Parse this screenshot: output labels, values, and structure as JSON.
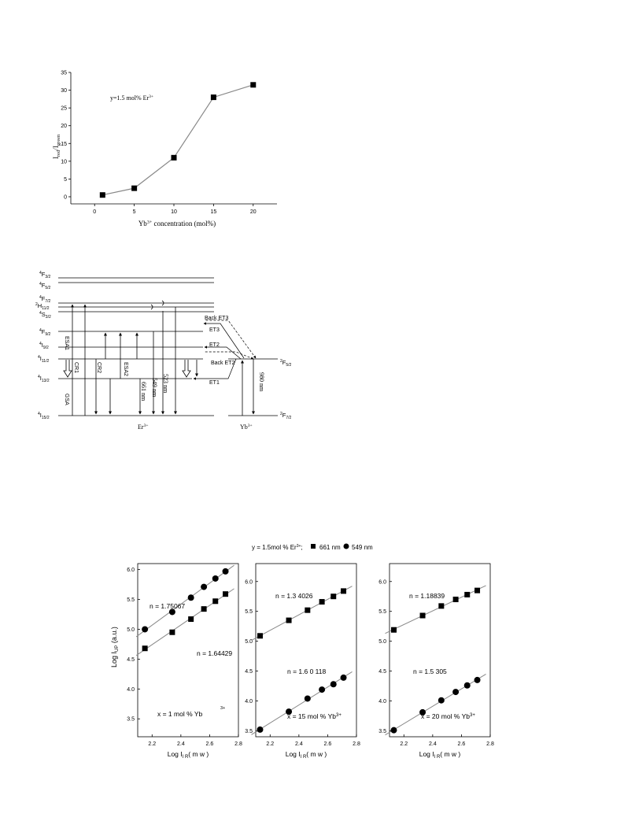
{
  "chart_data": [
    {
      "type": "line",
      "x": [
        1,
        5,
        10,
        15,
        20
      ],
      "series": [
        {
          "name": "",
          "values": [
            0.5,
            2.4,
            11,
            28,
            31.5
          ]
        }
      ],
      "annotation": "y=1.5 mol% Er",
      "annotation_sup": "3+",
      "ylabel": "I",
      "ylabel_sub1": "red",
      "ylabel_mid": "/I",
      "ylabel_sub2": "green",
      "xlabel": "Yb",
      "xlabel_sup": "3+",
      "xlabel_rest": " concentration (mol%)",
      "xlim": [
        -3,
        23
      ],
      "ylim": [
        -2,
        35
      ],
      "xticks": [
        0,
        5,
        10,
        15,
        20
      ],
      "yticks": [
        0,
        5,
        10,
        15,
        20,
        25,
        30,
        35
      ],
      "grid": false
    },
    {
      "type": "scatter",
      "legend": {
        "prefix": "y = 1.5mol % Er",
        "prefix_sup": "3+",
        "prefix_tail": ";",
        "square_label": "661 nm",
        "circle_label": "549 nm"
      },
      "ylabel": "Log I",
      "ylabel_sub": "UP",
      "ylabel_unit": " (a.u.)",
      "xlabel": "Log  I",
      "xlabel_sub": "I R",
      "xlabel_unit": "( m w )",
      "panels": [
        {
          "xlim": [
            2.1,
            2.8
          ],
          "ylim": [
            3.2,
            6.1
          ],
          "xticks": [
            "2.2",
            "2.4",
            "2.6",
            "2.8"
          ],
          "yticks": [
            "3.5",
            "4.0",
            "4.5",
            "5.0",
            "5.5",
            "6.0"
          ],
          "square": {
            "x": [
              2.15,
              2.34,
              2.47,
              2.56,
              2.64,
              2.71
            ],
            "y": [
              4.68,
              4.95,
              5.17,
              5.34,
              5.47,
              5.59
            ]
          },
          "circle": {
            "x": [
              2.15,
              2.34,
              2.47,
              2.56,
              2.64,
              2.71
            ],
            "y": [
              5.0,
              5.29,
              5.53,
              5.71,
              5.85,
              5.97
            ]
          },
          "n_circle": "n = 1.75067",
          "n_square": "n = 1.64429",
          "conc": "x = 1 mol % Yb",
          "stray": "3+"
        },
        {
          "xlim": [
            2.1,
            2.8
          ],
          "ylim": [
            3.4,
            6.3
          ],
          "xticks": [
            "2.2",
            "2.4",
            "2.6",
            "2.8"
          ],
          "yticks": [
            "3.5",
            "4.0",
            "4.5",
            "5.0",
            "5.5",
            "6.0"
          ],
          "square": {
            "x": [
              2.13,
              2.33,
              2.46,
              2.56,
              2.64,
              2.71
            ],
            "y": [
              5.09,
              5.35,
              5.52,
              5.66,
              5.75,
              5.84
            ]
          },
          "circle": {
            "x": [
              2.13,
              2.33,
              2.46,
              2.56,
              2.64,
              2.71
            ],
            "y": [
              3.52,
              3.82,
              4.04,
              4.19,
              4.28,
              4.39
            ]
          },
          "n_square": "n = 1.3 4026",
          "n_circle": "n = 1.6 0 118",
          "conc": "x = 15 mol % Yb",
          "conc_sup": "3+"
        },
        {
          "xlim": [
            2.1,
            2.8
          ],
          "ylim": [
            3.4,
            6.3
          ],
          "xticks": [
            "2.2",
            "2.4",
            "2.6",
            "2.8"
          ],
          "yticks": [
            "3.5",
            "4.0",
            "4.5",
            "5.0",
            "5.5",
            "6.0"
          ],
          "square": {
            "x": [
              2.13,
              2.33,
              2.46,
              2.56,
              2.64,
              2.71
            ],
            "y": [
              5.19,
              5.43,
              5.59,
              5.7,
              5.78,
              5.85
            ]
          },
          "circle": {
            "x": [
              2.13,
              2.33,
              2.46,
              2.56,
              2.64,
              2.71
            ],
            "y": [
              3.51,
              3.81,
              4.01,
              4.15,
              4.26,
              4.35
            ]
          },
          "n_square": "n = 1.18839",
          "n_circle": "n = 1.5 305",
          "conc": "x = 20 mol % Yb",
          "conc_sup": "3+"
        }
      ]
    }
  ],
  "energy_diagram": {
    "er_levels": [
      {
        "main": "4",
        "letter": "F",
        "sub": "3/2"
      },
      {
        "main": "4",
        "letter": "F",
        "sub": "5/2"
      },
      {
        "main": "4",
        "letter": "F",
        "sub": "7/2"
      },
      {
        "main": "2",
        "letter": "H",
        "sub": "11/2"
      },
      {
        "main": "4",
        "letter": "S",
        "sub": "3/2"
      },
      {
        "main": "4",
        "letter": "F",
        "sub": "9/2"
      },
      {
        "main": "4",
        "letter": "I",
        "sub": "9/2"
      },
      {
        "main": "4",
        "letter": "I",
        "sub": "11/2"
      },
      {
        "main": "4",
        "letter": "I",
        "sub": "13/2"
      },
      {
        "main": "4",
        "letter": "I",
        "sub": "15/2"
      }
    ],
    "yb_levels": [
      {
        "main": "2",
        "letter": "F",
        "sub": "5/2"
      },
      {
        "main": "2",
        "letter": "F",
        "sub": "7/2"
      }
    ],
    "process_labels": {
      "gsa": "GSA",
      "esa1": "ESA1",
      "cr1": "CR1",
      "cr2": "CR2",
      "esa2": "ESA2"
    },
    "emission_labels": [
      "661 nm",
      "549 nm",
      "523 nm"
    ],
    "pump_label": "980 nm",
    "et_labels": [
      "Back ET3",
      "ET3",
      "ET2",
      "Back ET2",
      "ET1"
    ],
    "er_ion": "Er",
    "yb_ion": "Yb",
    "ion_sup": "3+"
  }
}
